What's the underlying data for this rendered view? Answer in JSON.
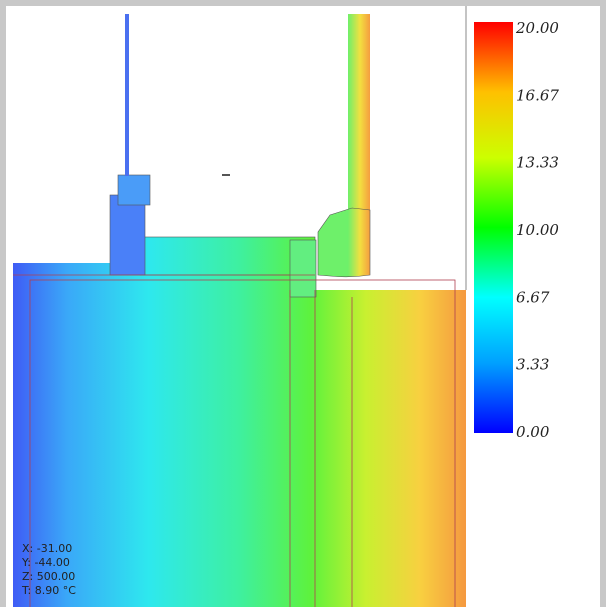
{
  "color_scale": {
    "labels": [
      "20.00",
      "16.67",
      "13.33",
      "10.00",
      "6.67",
      "3.33",
      "0.00"
    ]
  },
  "readout": [
    "X: -31.00",
    "Y: -44.00",
    "Z: 500.00",
    "T: 8.90 °C"
  ]
}
